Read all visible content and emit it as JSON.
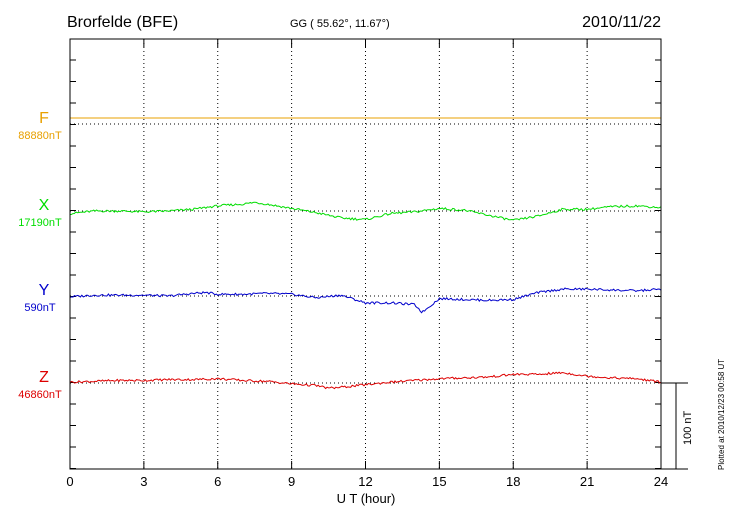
{
  "chart_data": {
    "type": "line",
    "station": "Brorfelde (BFE)",
    "coords": "GG ( 55.62°,  11.67°)",
    "date": "2010/11/22",
    "xlabel": "U T (hour)",
    "xlim": [
      0,
      24
    ],
    "xticks": [
      "0",
      "3",
      "6",
      "9",
      "12",
      "15",
      "18",
      "21",
      "24"
    ],
    "scale_bar": "100 nT",
    "plotted_note": "Plotted at 2010/12/23 00:58 UT",
    "colors": {
      "F": "#e8a000",
      "X": "#00dd00",
      "Y": "#0000cc",
      "Z": "#dd0000"
    },
    "series": [
      {
        "name": "F",
        "baseline": "88880nT",
        "x": [
          0,
          24
        ],
        "y": [
          7,
          7
        ]
      },
      {
        "name": "X",
        "baseline": "17190nT",
        "x": [
          0,
          1,
          2,
          3,
          4,
          5,
          6,
          7,
          7.5,
          8,
          9,
          10,
          11,
          12,
          13,
          14,
          15,
          16,
          17,
          18,
          19,
          20,
          21,
          22,
          23,
          24
        ],
        "y": [
          -3,
          0,
          0,
          -1,
          0,
          2,
          6,
          8,
          10,
          8,
          3,
          -2,
          -8,
          -10,
          -3,
          -1,
          3,
          1,
          -5,
          -11,
          -6,
          2,
          2,
          5,
          6,
          4
        ]
      },
      {
        "name": "Y",
        "baseline": "590nT",
        "x": [
          0,
          1,
          2,
          3,
          4,
          5,
          5.5,
          6,
          7,
          8,
          9,
          10,
          11,
          12,
          13,
          14,
          14.3,
          15,
          16,
          17,
          18,
          19,
          20,
          21,
          22,
          23,
          24
        ],
        "y": [
          -1,
          1,
          1,
          1,
          0,
          3,
          4,
          2,
          2,
          3,
          2,
          -2,
          1,
          -8,
          -8,
          -10,
          -19,
          -3,
          -4,
          -5,
          -4,
          4,
          8,
          8,
          7,
          6,
          8
        ]
      },
      {
        "name": "Z",
        "baseline": "46860nT",
        "x": [
          0,
          1,
          2,
          3,
          4,
          5,
          6,
          7,
          8,
          9,
          10,
          10.5,
          11,
          12,
          13,
          14,
          15,
          16,
          17,
          18,
          19,
          20,
          21,
          22,
          23,
          24
        ],
        "y": [
          1,
          2,
          3,
          3,
          4,
          4,
          5,
          3,
          2,
          -1,
          -3,
          -6,
          -5,
          -2,
          1,
          3,
          5,
          6,
          7,
          10,
          10,
          12,
          8,
          6,
          5,
          1
        ]
      }
    ]
  }
}
